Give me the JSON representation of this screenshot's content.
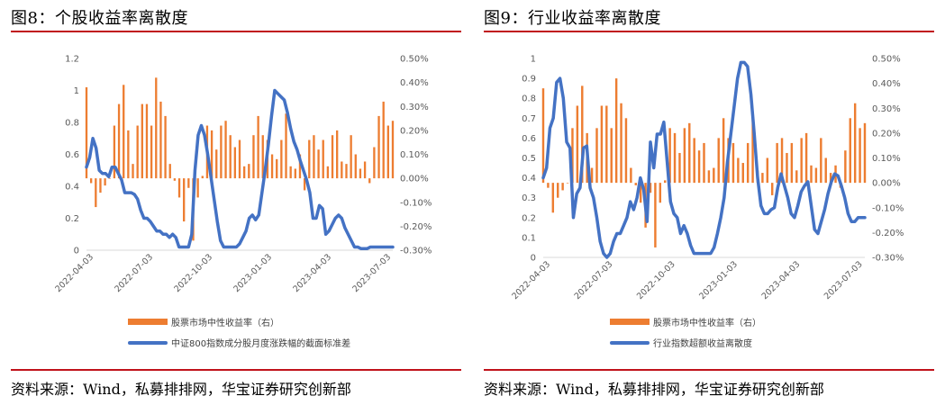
{
  "charts": [
    {
      "title": "图8：个股收益率离散度",
      "source": "资料来源：Wind，私募排排网，华宝证券研究创新部",
      "legend": {
        "bar_label": "股票市场中性收益率（右）",
        "line_label": "中证800指数成分股月度涨跌幅的截面标准差"
      },
      "colors": {
        "bar": "#ed7d31",
        "line": "#4472c4",
        "rule": "#c0121b"
      }
    },
    {
      "title": "图9：行业收益率离散度",
      "source": "资料来源：Wind，私募排排网，华宝证券研究创新部",
      "legend": {
        "bar_label": "股票市场中性收益率（右）",
        "line_label": "行业指数超额收益离散度"
      },
      "colors": {
        "bar": "#ed7d31",
        "line": "#4472c4",
        "rule": "#c0121b"
      }
    }
  ],
  "chart_data": [
    {
      "type": "bar+line",
      "x_tick_labels": [
        "2022-04-03",
        "2022-07-03",
        "2022-10-03",
        "2023-01-03",
        "2023-04-03",
        "2023-07-03"
      ],
      "left_axis": {
        "ticks": [
          "0",
          "0.2",
          "0.4",
          "0.6",
          "0.8",
          "1",
          "1.2"
        ],
        "ylim": [
          0,
          1.2
        ]
      },
      "right_axis": {
        "ticks": [
          "-0.30%",
          "-0.20%",
          "-0.10%",
          "0.00%",
          "0.10%",
          "0.20%",
          "0.30%",
          "0.40%",
          "0.50%"
        ],
        "ylim": [
          -0.3,
          0.5
        ]
      },
      "bars": {
        "name": "股票市场中性收益率（右）",
        "axis": "right",
        "unit": "%",
        "values": [
          0.38,
          -0.02,
          -0.12,
          -0.06,
          -0.03,
          0.0,
          0.22,
          0.31,
          0.39,
          0.2,
          0.06,
          0.22,
          0.31,
          0.31,
          0.22,
          0.42,
          0.32,
          0.26,
          0.06,
          -0.01,
          -0.08,
          -0.18,
          -0.04,
          -0.26,
          -0.08,
          0.01,
          0.22,
          0.2,
          0.12,
          0.22,
          0.24,
          0.18,
          0.13,
          0.16,
          0.05,
          0.06,
          0.18,
          0.26,
          0.18,
          0.16,
          0.1,
          0.08,
          0.16,
          0.27,
          0.05,
          0.04,
          0.1,
          -0.05,
          0.16,
          0.18,
          0.12,
          0.16,
          0.05,
          0.18,
          0.2,
          0.07,
          0.06,
          0.18,
          0.1,
          0.04,
          0.07,
          -0.02,
          0.13,
          0.26,
          0.32,
          0.22,
          0.24
        ],
        "x_range": [
          0,
          66
        ]
      },
      "line": {
        "name": "中证800指数成分股月度涨跌幅的截面标准差",
        "axis": "left",
        "x_range": [
          0,
          96
        ],
        "values": [
          0.52,
          0.58,
          0.7,
          0.64,
          0.5,
          0.48,
          0.48,
          0.46,
          0.52,
          0.52,
          0.48,
          0.44,
          0.36,
          0.36,
          0.36,
          0.35,
          0.32,
          0.25,
          0.2,
          0.2,
          0.18,
          0.15,
          0.12,
          0.12,
          0.1,
          0.1,
          0.08,
          0.1,
          0.08,
          0.02,
          0.02,
          0.02,
          0.02,
          0.1,
          0.5,
          0.72,
          0.78,
          0.72,
          0.6,
          0.46,
          0.32,
          0.18,
          0.06,
          0.02,
          0.02,
          0.02,
          0.02,
          0.02,
          0.04,
          0.08,
          0.12,
          0.2,
          0.22,
          0.19,
          0.22,
          0.36,
          0.5,
          0.66,
          0.84,
          1.0,
          0.98,
          0.96,
          0.94,
          0.86,
          0.76,
          0.68,
          0.63,
          0.56,
          0.5,
          0.44,
          0.36,
          0.2,
          0.2,
          0.28,
          0.26,
          0.1,
          0.12,
          0.16,
          0.2,
          0.22,
          0.2,
          0.14,
          0.1,
          0.06,
          0.02,
          0.02,
          0.01,
          0.01,
          0.01,
          0.02,
          0.02,
          0.02,
          0.02,
          0.02,
          0.02,
          0.02,
          0.02
        ]
      }
    },
    {
      "type": "bar+line",
      "x_tick_labels": [
        "2022-04-03",
        "2022-07-03",
        "2022-10-03",
        "2023-01-03",
        "2023-04-03",
        "2023-07-03"
      ],
      "left_axis": {
        "ticks": [
          "0",
          "0.1",
          "0.2",
          "0.3",
          "0.4",
          "0.5",
          "0.6",
          "0.7",
          "0.8",
          "0.9",
          "1"
        ],
        "ylim": [
          0,
          1
        ]
      },
      "right_axis": {
        "ticks": [
          "-0.30%",
          "-0.20%",
          "-0.10%",
          "0.00%",
          "0.10%",
          "0.20%",
          "0.30%",
          "0.40%",
          "0.50%"
        ],
        "ylim": [
          -0.3,
          0.5
        ]
      },
      "bars": {
        "name": "股票市场中性收益率（右）",
        "axis": "right",
        "unit": "%",
        "values": [
          0.38,
          -0.02,
          -0.12,
          -0.06,
          -0.03,
          0.0,
          0.22,
          0.31,
          0.39,
          0.2,
          0.06,
          0.22,
          0.31,
          0.31,
          0.22,
          0.42,
          0.32,
          0.26,
          0.06,
          -0.01,
          -0.08,
          -0.18,
          -0.04,
          -0.26,
          -0.08,
          0.01,
          0.22,
          0.2,
          0.12,
          0.22,
          0.24,
          0.18,
          0.13,
          0.16,
          0.05,
          0.06,
          0.18,
          0.26,
          0.18,
          0.16,
          0.1,
          0.08,
          0.16,
          0.27,
          0.05,
          0.04,
          0.1,
          -0.05,
          0.16,
          0.18,
          0.12,
          0.16,
          0.05,
          0.18,
          0.2,
          0.07,
          0.06,
          0.18,
          0.1,
          0.04,
          0.07,
          -0.02,
          0.13,
          0.26,
          0.32,
          0.22,
          0.24
        ],
        "x_range": [
          0,
          66
        ]
      },
      "line": {
        "name": "行业指数超额收益离散度",
        "axis": "left",
        "x_range": [
          0,
          96
        ],
        "values": [
          0.4,
          0.45,
          0.65,
          0.7,
          0.88,
          0.9,
          0.8,
          0.58,
          0.55,
          0.2,
          0.32,
          0.35,
          0.55,
          0.56,
          0.35,
          0.3,
          0.2,
          0.08,
          0.02,
          0.0,
          0.02,
          0.08,
          0.12,
          0.12,
          0.16,
          0.2,
          0.28,
          0.24,
          0.3,
          0.4,
          0.34,
          0.18,
          0.58,
          0.45,
          0.62,
          0.62,
          0.68,
          0.48,
          0.28,
          0.22,
          0.2,
          0.12,
          0.16,
          0.12,
          0.06,
          0.02,
          0.02,
          0.02,
          0.02,
          0.02,
          0.02,
          0.05,
          0.12,
          0.2,
          0.3,
          0.48,
          0.62,
          0.76,
          0.9,
          0.98,
          0.98,
          0.96,
          0.82,
          0.62,
          0.4,
          0.26,
          0.22,
          0.22,
          0.24,
          0.25,
          0.35,
          0.42,
          0.36,
          0.3,
          0.22,
          0.2,
          0.26,
          0.33,
          0.36,
          0.38,
          0.26,
          0.14,
          0.12,
          0.18,
          0.24,
          0.32,
          0.38,
          0.42,
          0.41,
          0.36,
          0.3,
          0.22,
          0.18,
          0.18,
          0.2,
          0.2,
          0.2
        ]
      }
    }
  ]
}
